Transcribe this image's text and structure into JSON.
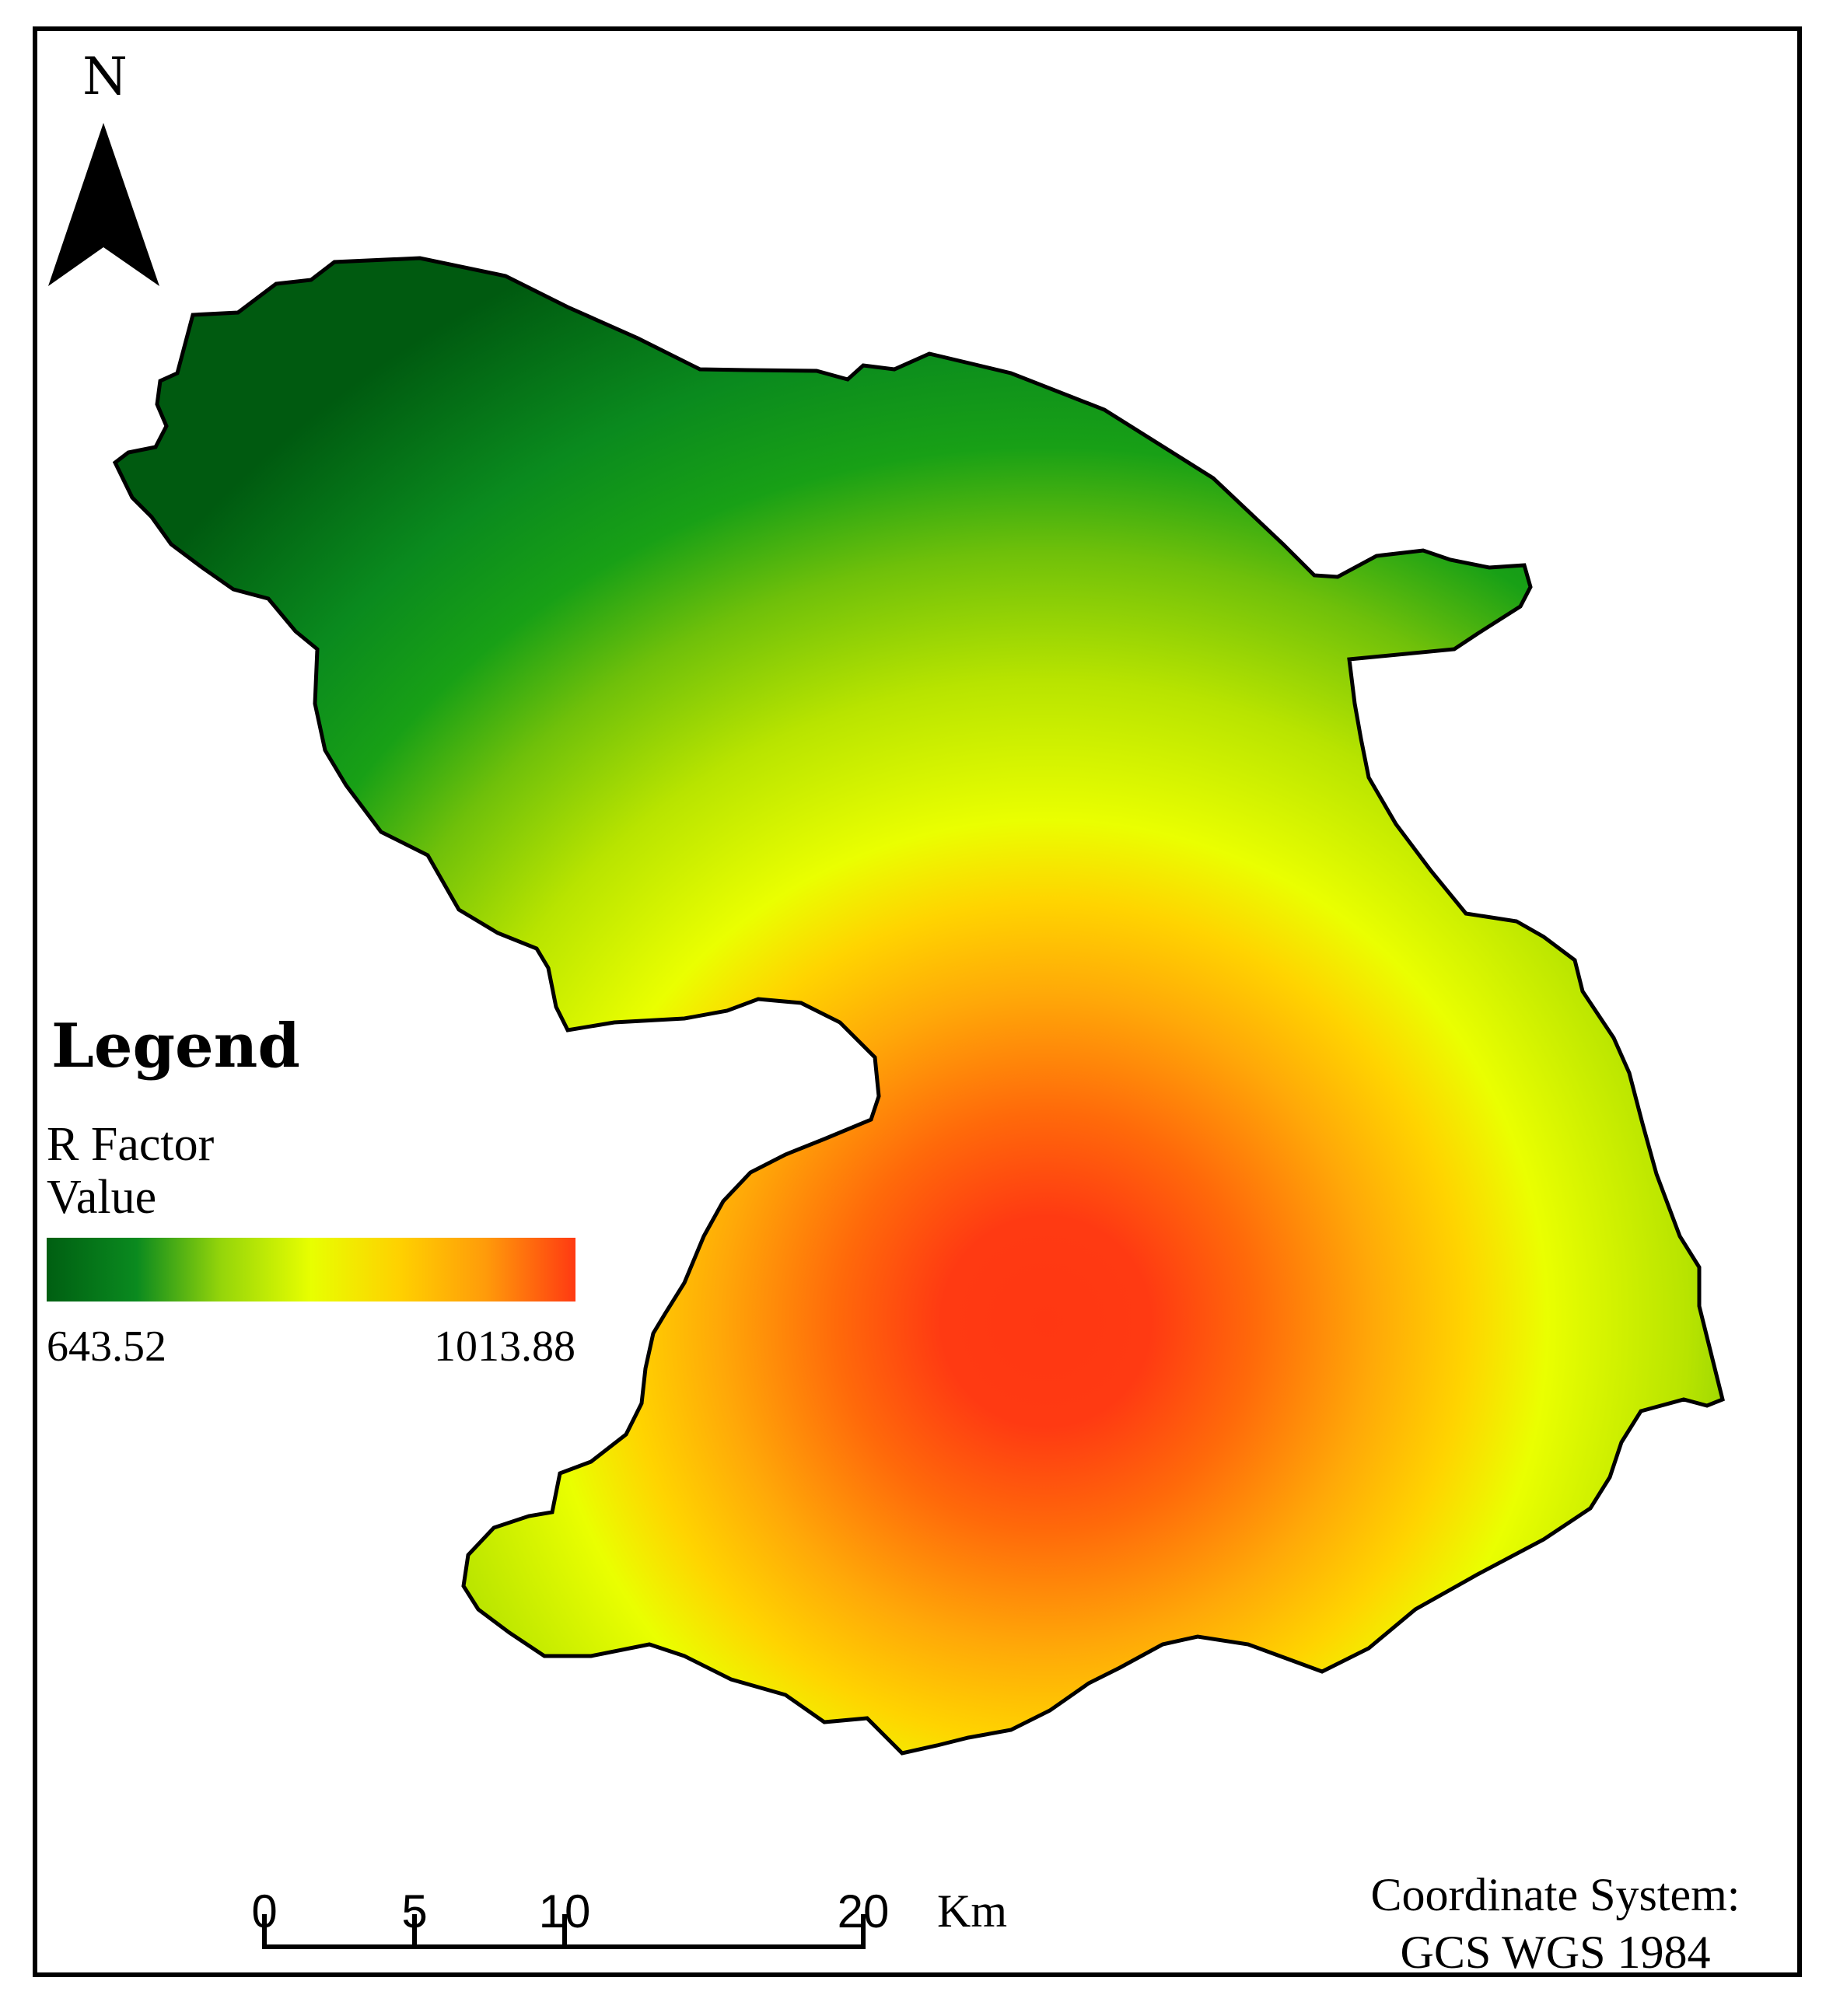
{
  "map": {
    "north_arrow_label": "N",
    "legend": {
      "title": "Legend",
      "field_line1": "R Factor",
      "field_line2": "Value",
      "min_label": "643.52",
      "max_label": "1013.88",
      "ramp_colors": [
        "#005f12",
        "#0a8a1f",
        "#95d50a",
        "#e8ff00",
        "#ffd000",
        "#ff9b0a",
        "#ff3a12"
      ]
    },
    "scale_bar": {
      "ticks": [
        "0",
        "5",
        "10",
        "20"
      ],
      "unit": "Km"
    },
    "coordinate_system": {
      "line1": "Coordinate System:",
      "line2": "GCS WGS 1984"
    }
  }
}
